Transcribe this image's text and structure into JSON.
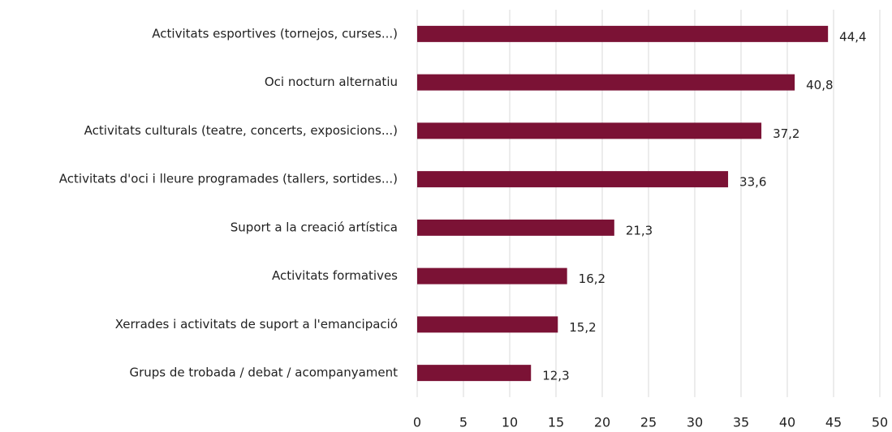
{
  "chart_data": {
    "type": "bar",
    "orientation": "horizontal",
    "categories": [
      "Activitats esportives (tornejos, curses...)",
      "Oci nocturn alternatiu",
      "Activitats culturals (teatre, concerts, exposicions...)",
      "Activitats d'oci i lleure programades (tallers, sortides...)",
      "Suport a la creació artística",
      "Activitats formatives",
      "Xerrades i activitats de suport a l'emancipació",
      "Grups de trobada / debat / acompanyament"
    ],
    "values": [
      44.4,
      40.8,
      37.2,
      33.6,
      21.3,
      16.2,
      15.2,
      12.3
    ],
    "value_labels": [
      "44,4",
      "40,8",
      "37,2",
      "33,6",
      "21,3",
      "16,2",
      "15,2",
      "12,3"
    ],
    "color": "#7b1235",
    "xlim": [
      0,
      50
    ],
    "xticks": [
      0,
      5,
      10,
      15,
      20,
      25,
      30,
      35,
      40,
      45,
      50
    ],
    "grid": true
  }
}
